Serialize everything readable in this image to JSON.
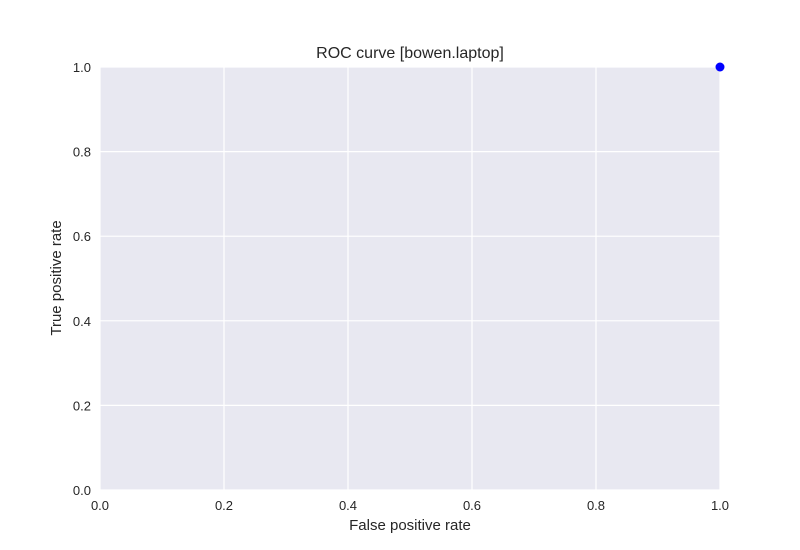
{
  "chart_data": {
    "type": "scatter",
    "title": "ROC curve [bowen.laptop]",
    "xlabel": "False positive rate",
    "ylabel": "True positive rate",
    "xlim": [
      0.0,
      1.0
    ],
    "ylim": [
      0.0,
      1.0
    ],
    "x_ticks": [
      0.0,
      0.2,
      0.4,
      0.6,
      0.8,
      1.0
    ],
    "y_ticks": [
      0.0,
      0.2,
      0.4,
      0.6,
      0.8,
      1.0
    ],
    "x_tick_labels": [
      "0.0",
      "0.2",
      "0.4",
      "0.6",
      "0.8",
      "1.0"
    ],
    "y_tick_labels": [
      "0.0",
      "0.2",
      "0.4",
      "0.6",
      "0.8",
      "1.0"
    ],
    "grid": true,
    "series": [
      {
        "x": [
          1.0
        ],
        "y": [
          1.0
        ],
        "color": "#0000ff"
      }
    ],
    "colors": {
      "plot_background": "#e8e8f1",
      "grid": "#ffffff",
      "text": "#262626"
    }
  }
}
